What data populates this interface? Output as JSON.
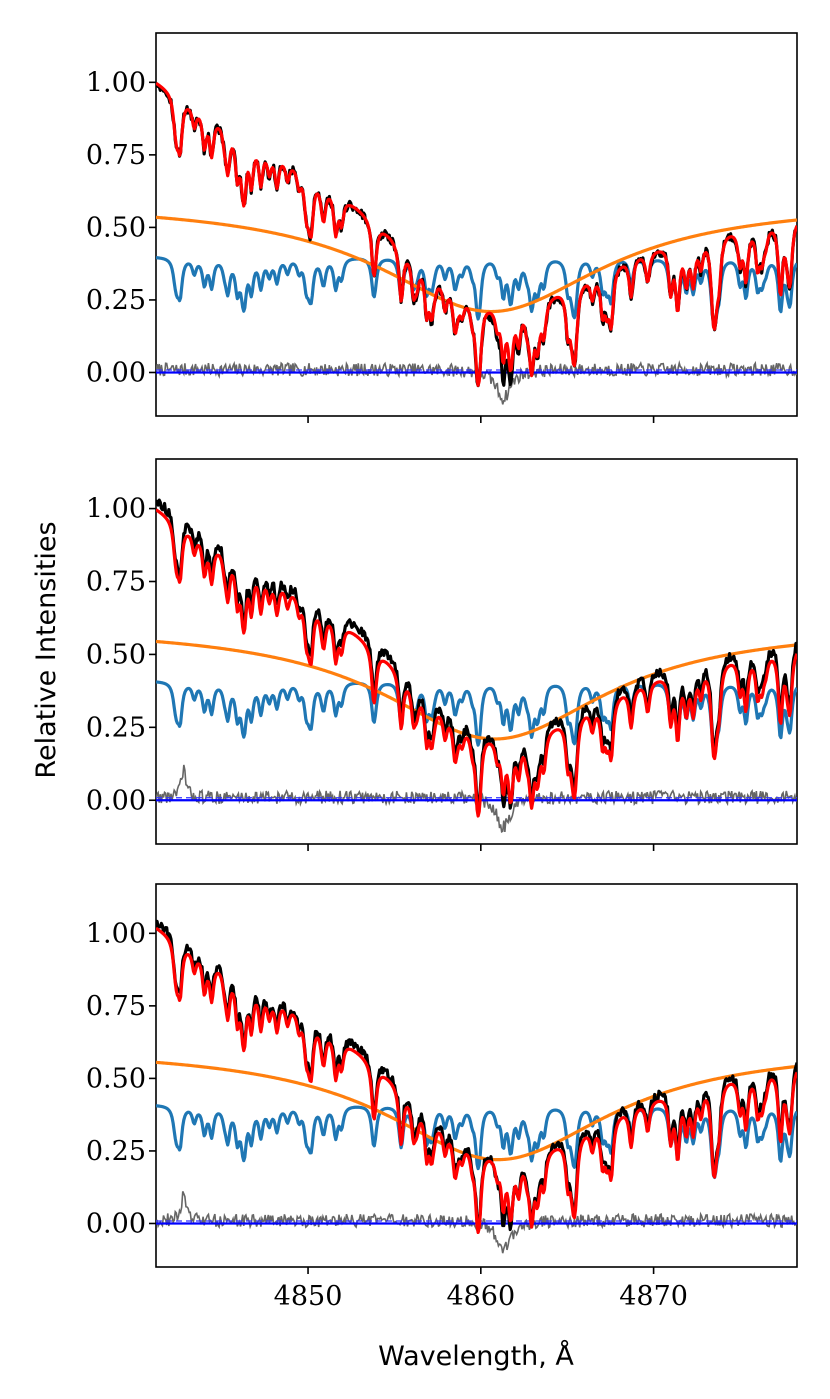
{
  "figure": {
    "xlabel": "Wavelength, Å",
    "ylabel": "Relative Intensities"
  },
  "chart_data": [
    {
      "type": "line",
      "panel": "top",
      "xlim": [
        4841.2,
        4878.3
      ],
      "ylim": [
        -0.15,
        1.17
      ],
      "xticks": [
        4850,
        4860,
        4870
      ],
      "xtick_labels_shown": false,
      "yticks": [
        0.0,
        0.25,
        0.5,
        0.75,
        1.0
      ],
      "ytick_labels": [
        "0.00",
        "0.25",
        "0.50",
        "0.75",
        "1.00"
      ],
      "zero_line": {
        "y": 0.0,
        "style": "dashed",
        "color": "#3333ff"
      },
      "series": [
        {
          "role": "observed",
          "color": "#000000",
          "width": 3.2,
          "baseline": 0.93
        },
        {
          "role": "model_sum",
          "color": "#ff0000",
          "width": 3.2,
          "baseline": 0.93
        },
        {
          "role": "broad_balmer_component",
          "color": "#ff7f0e",
          "width": 3.2,
          "level": 0.59,
          "center": 4860.6,
          "depth": 0.38,
          "hwhm": 8.0
        },
        {
          "role": "narrow_line_component",
          "color": "#1f77b4",
          "width": 3.2,
          "level": 0.4
        },
        {
          "role": "residual",
          "color": "#666666",
          "width": 1.6
        },
        {
          "role": "zero",
          "color": "#0000ff",
          "width": 2.2
        }
      ]
    },
    {
      "type": "line",
      "panel": "middle",
      "xlim": [
        4841.2,
        4878.3
      ],
      "ylim": [
        -0.15,
        1.17
      ],
      "xticks": [
        4850,
        4860,
        4870
      ],
      "xtick_labels_shown": false,
      "yticks": [
        0.0,
        0.25,
        0.5,
        0.75,
        1.0
      ],
      "ytick_labels": [
        "0.00",
        "0.25",
        "0.50",
        "0.75",
        "1.00"
      ],
      "zero_line": {
        "y": 0.0,
        "style": "dashed",
        "color": "#3333ff"
      },
      "series": [
        {
          "role": "observed",
          "color": "#000000",
          "width": 3.2,
          "baseline": 0.96
        },
        {
          "role": "model_sum",
          "color": "#ff0000",
          "width": 3.2,
          "baseline": 0.93
        },
        {
          "role": "broad_balmer_component",
          "color": "#ff7f0e",
          "width": 3.2,
          "level": 0.6,
          "center": 4860.8,
          "depth": 0.39,
          "hwhm": 8.0
        },
        {
          "role": "narrow_line_component",
          "color": "#1f77b4",
          "width": 3.2,
          "level": 0.41
        },
        {
          "role": "residual",
          "color": "#666666",
          "width": 1.6
        },
        {
          "role": "zero",
          "color": "#0000ff",
          "width": 2.2
        }
      ]
    },
    {
      "type": "line",
      "panel": "bottom",
      "xlim": [
        4841.2,
        4878.3
      ],
      "ylim": [
        -0.15,
        1.17
      ],
      "xticks": [
        4850,
        4860,
        4870
      ],
      "xtick_labels": [
        "4850",
        "4860",
        "4870"
      ],
      "xtick_labels_shown": true,
      "yticks": [
        0.0,
        0.25,
        0.5,
        0.75,
        1.0
      ],
      "ytick_labels": [
        "0.00",
        "0.25",
        "0.50",
        "0.75",
        "1.00"
      ],
      "zero_line": {
        "y": 0.0,
        "style": "dashed",
        "color": "#3333ff"
      },
      "series": [
        {
          "role": "observed",
          "color": "#000000",
          "width": 3.2,
          "baseline": 0.97
        },
        {
          "role": "model_sum",
          "color": "#ff0000",
          "width": 3.2,
          "baseline": 0.95
        },
        {
          "role": "broad_balmer_component",
          "color": "#ff7f0e",
          "width": 3.2,
          "level": 0.61,
          "center": 4861.0,
          "depth": 0.39,
          "hwhm": 8.0
        },
        {
          "role": "narrow_line_component",
          "color": "#1f77b4",
          "width": 3.2,
          "level": 0.41
        },
        {
          "role": "residual",
          "color": "#666666",
          "width": 1.6
        },
        {
          "role": "zero",
          "color": "#0000ff",
          "width": 2.2
        }
      ]
    }
  ]
}
